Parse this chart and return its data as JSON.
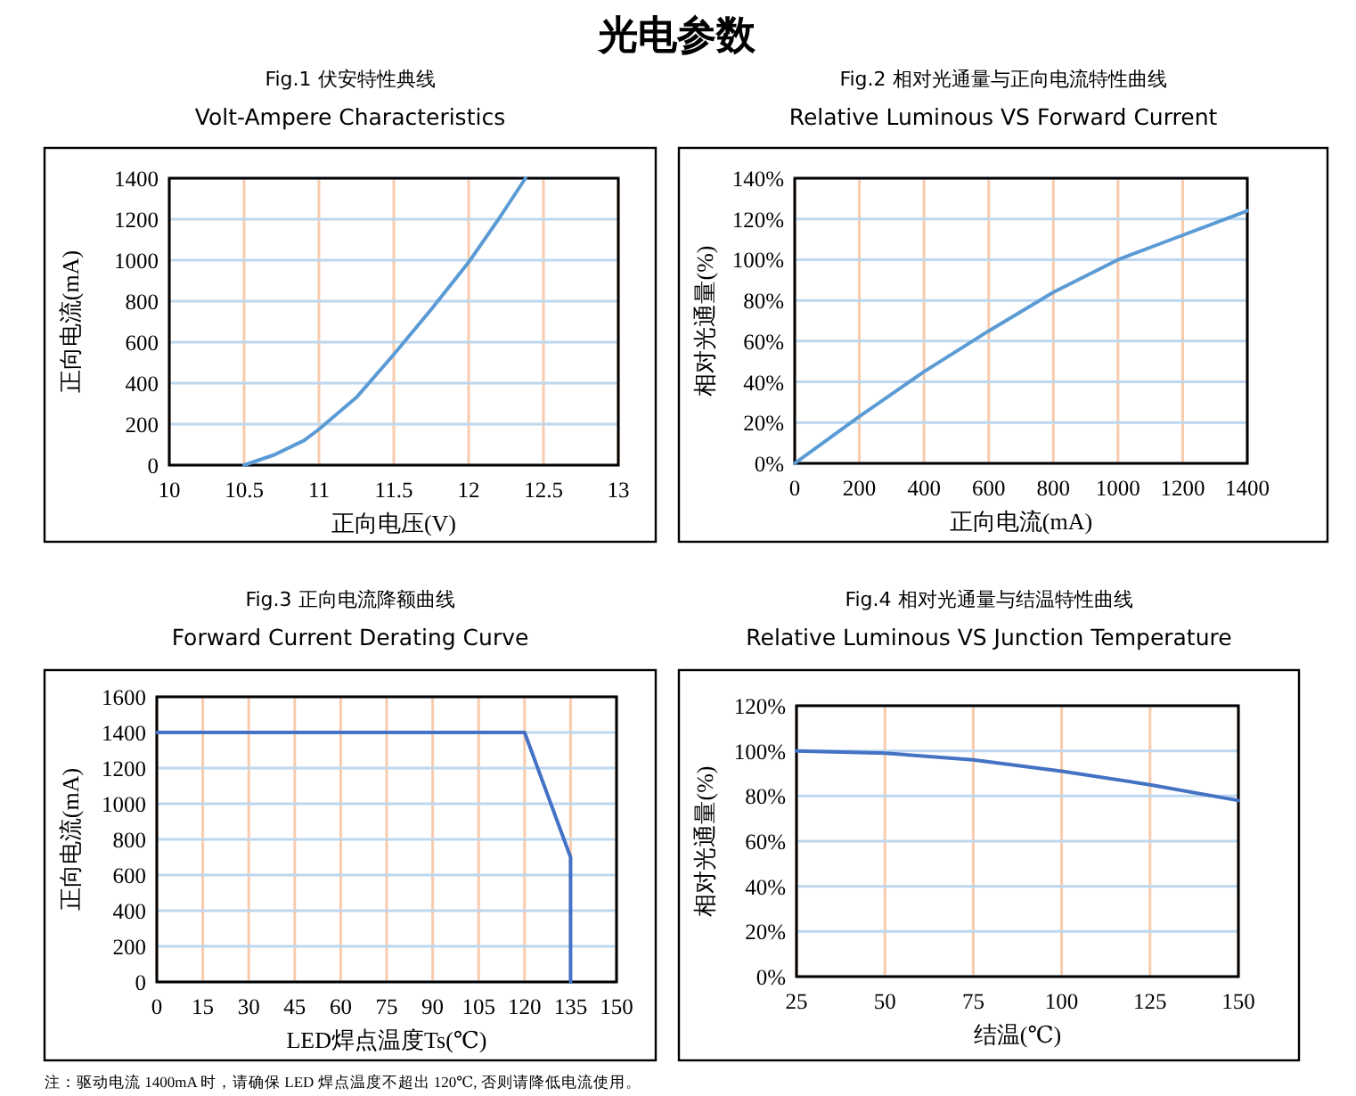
{
  "chart_data": [
    {
      "type": "line",
      "title": "Fig.1  伏安特性典线",
      "subtitle": "Volt-Ampere Characteristics",
      "xlabel": "正向电压(V)",
      "ylabel": "正向电流(mA)",
      "annotations": [
        "光电参数"
      ],
      "grid": true,
      "color": "#5b9bd5",
      "x": [
        10.5,
        10.7,
        10.9,
        11,
        11.25,
        11.5,
        11.75,
        12,
        12.2,
        12.38
      ],
      "values": [
        0,
        50,
        120,
        175,
        330,
        540,
        760,
        990,
        1200,
        1400
      ],
      "xlim": [
        10,
        13
      ],
      "xticks": [
        10,
        10.5,
        11,
        11.5,
        12,
        12.5,
        13
      ],
      "ylim": [
        0,
        1400
      ],
      "yticks": [
        0,
        200,
        400,
        600,
        800,
        1000,
        1200,
        1400
      ]
    },
    {
      "type": "line",
      "title": "Fig.2  相对光通量与正向电流特性曲线",
      "subtitle": "Relative Luminous VS Forward Current",
      "xlabel": "正向电流(mA)",
      "ylabel": "相对光通量(%)",
      "grid": true,
      "color": "#5b9bd5",
      "x": [
        0,
        200,
        400,
        600,
        800,
        1000,
        1200,
        1400
      ],
      "values": [
        0,
        23,
        45,
        65,
        84,
        100,
        112,
        124
      ],
      "xlim": [
        0,
        1400
      ],
      "xticks": [
        0,
        200,
        400,
        600,
        800,
        1000,
        1200,
        1400
      ],
      "ylim": [
        0,
        140
      ],
      "yticks": [
        {
          "value": 0,
          "label": "0%"
        },
        {
          "value": 20,
          "label": "20%"
        },
        {
          "value": 40,
          "label": "40%"
        },
        {
          "value": 60,
          "label": "60%"
        },
        {
          "value": 80,
          "label": "80%"
        },
        {
          "value": 100,
          "label": "100%"
        },
        {
          "value": 120,
          "label": "120%"
        },
        {
          "value": 140,
          "label": "140%"
        }
      ]
    },
    {
      "type": "line",
      "title": "Fig.3  正向电流降额曲线",
      "subtitle": "Forward Current Derating Curve",
      "xlabel": "LED焊点温度Ts(℃)",
      "ylabel": "正向电流(mA)",
      "annotations": [
        "注：驱动电流 1400mA 时，请确保 LED 焊点温度不超出 120℃, 否则请降低电流使用。"
      ],
      "grid": true,
      "color": "#4472c4",
      "x": [
        0,
        120,
        135,
        135
      ],
      "values": [
        1400,
        1400,
        700,
        0
      ],
      "xlim": [
        0,
        150
      ],
      "xticks": [
        0,
        15,
        30,
        45,
        60,
        75,
        90,
        105,
        120,
        135,
        150
      ],
      "ylim": [
        0,
        1600
      ],
      "yticks": [
        0,
        200,
        400,
        600,
        800,
        1000,
        1200,
        1400,
        1600
      ]
    },
    {
      "type": "line",
      "title": "Fig.4  相对光通量与结温特性曲线",
      "subtitle": "Relative Luminous VS Junction Temperature",
      "xlabel": "结温(℃)",
      "ylabel": "相对光通量(%)",
      "grid": true,
      "color": "#4472c4",
      "x": [
        25,
        50,
        75,
        100,
        125,
        150
      ],
      "values": [
        100,
        99,
        96,
        91,
        85,
        78
      ],
      "xlim": [
        25,
        150
      ],
      "xticks": [
        25,
        50,
        75,
        100,
        125,
        150
      ],
      "ylim": [
        0,
        120
      ],
      "yticks": [
        {
          "value": 0,
          "label": "0%"
        },
        {
          "value": 20,
          "label": "20%"
        },
        {
          "value": 40,
          "label": "40%"
        },
        {
          "value": 60,
          "label": "60%"
        },
        {
          "value": 80,
          "label": "80%"
        },
        {
          "value": 100,
          "label": "100%"
        },
        {
          "value": 120,
          "label": "120%"
        }
      ]
    }
  ]
}
